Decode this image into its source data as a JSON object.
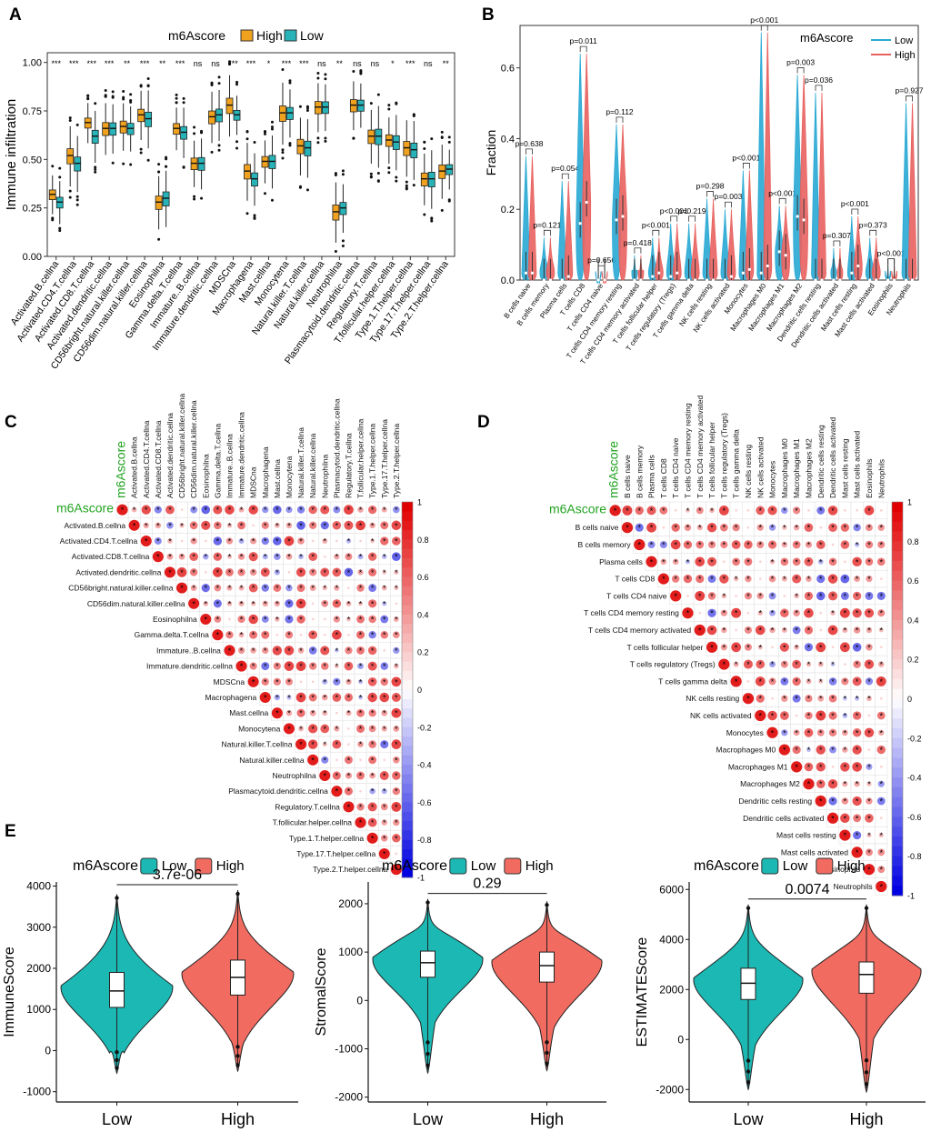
{
  "colors": {
    "panelA_high": "#F0A21E",
    "panelA_low": "#27B3B8",
    "panelB_low": "#29A9D4",
    "panelB_high": "#E8625F",
    "violin_low": "#1CB8B3",
    "violin_high": "#F26B61",
    "corr_pos": "#E21B1B",
    "corr_neg": "#1F1FE0",
    "m6a_label": "#22A322"
  },
  "chart_data": [
    {
      "panel": "A",
      "type": "box",
      "legend_title": "m6Ascore",
      "legend": [
        "High",
        "Low"
      ],
      "ylabel": "Immune infiltration",
      "ylim": [
        0,
        1.05
      ],
      "yticks": [
        "0.00",
        "0.25",
        "0.50",
        "0.75",
        "1.00"
      ],
      "categories": [
        "Activated.B.cellna",
        "Activated.CD4.T.cellna",
        "Activated.CD8.T.cellna",
        "Activated.dendritic.cellna",
        "CD56bright.natural.killer.cellna",
        "CD56dim.natural.killer.cellna",
        "Eosinophilna",
        "Gamma.delta.T.cellna",
        "Immature..B.cellna",
        "Immature.dendritic.cellna",
        "MDSCna",
        "Macrophagena",
        "Mast.cellna",
        "Monocytena",
        "Natural.killer.T.cellna",
        "Natural.killer.cellna",
        "Neutrophilna",
        "Plasmacytoid.dendritic.cellna",
        "Regulatory.T.cellna",
        "T.follicular.helper.cellna",
        "Type.1.T.helper.cellna",
        "Type.17.T.helper.cellna",
        "Type.2.T.helper.cellna"
      ],
      "significance": [
        "***",
        "***",
        "***",
        "***",
        "**",
        "***",
        "**",
        "***",
        "ns",
        "ns",
        "***",
        "***",
        "*",
        "***",
        "***",
        "ns",
        "**",
        "ns",
        "ns",
        "*",
        "***",
        "ns",
        "**"
      ],
      "series": [
        {
          "name": "High",
          "median": [
            0.32,
            0.52,
            0.69,
            0.66,
            0.67,
            0.73,
            0.28,
            0.66,
            0.48,
            0.72,
            0.78,
            0.44,
            0.49,
            0.74,
            0.57,
            0.77,
            0.23,
            0.78,
            0.62,
            0.6,
            0.56,
            0.4,
            0.44
          ]
        },
        {
          "name": "Low",
          "median": [
            0.28,
            0.48,
            0.62,
            0.66,
            0.66,
            0.71,
            0.3,
            0.64,
            0.48,
            0.73,
            0.73,
            0.4,
            0.49,
            0.74,
            0.56,
            0.77,
            0.25,
            0.78,
            0.62,
            0.59,
            0.55,
            0.4,
            0.45
          ]
        }
      ]
    },
    {
      "panel": "B",
      "type": "violin",
      "legend_title": "m6Ascore",
      "legend": [
        "Low",
        "High"
      ],
      "ylabel": "Fraction",
      "ylim": [
        0,
        0.72
      ],
      "yticks": [
        "0.0",
        "0.2",
        "0.4",
        "0.6"
      ],
      "categories": [
        "B cells naive",
        "B cells memory",
        "Plasma cells",
        "T cells CD8",
        "T cells CD4 naive",
        "T cells CD4 memory resting",
        "T cells CD4 memory activated",
        "T cells follicular helper",
        "T cells regulatory (Tregs)",
        "T cells gamma delta",
        "NK cells resting",
        "NK cells activated",
        "Monocytes",
        "Macrophages M0",
        "Macrophages M1",
        "Macrophages M2",
        "Dendritic cells resting",
        "Dendritic cells activated",
        "Mast cells resting",
        "Mast cells activated",
        "Eosinophils",
        "Neutrophils"
      ],
      "pvalues": [
        "p=0.638",
        "p=0.121",
        "p=0.054",
        "p=0.011",
        "p=0.656",
        "p=0.112",
        "p=0.418",
        "p<0.001",
        "p<0.001",
        "p=0.219",
        "p=0.298",
        "p=0.003",
        "p<0.001",
        "p<0.001",
        "p<0.001",
        "p=0.003",
        "p=0.036",
        "p=0.307",
        "p<0.001",
        "p=0.373",
        "p<0.001",
        "p=0.927"
      ],
      "max": [
        0.35,
        0.12,
        0.28,
        0.64,
        0.02,
        0.44,
        0.07,
        0.12,
        0.16,
        0.16,
        0.23,
        0.2,
        0.31,
        0.7,
        0.21,
        0.58,
        0.53,
        0.09,
        0.18,
        0.12,
        0.04,
        0.5
      ],
      "series": [
        {
          "name": "Low",
          "median": [
            0.02,
            0.0,
            0.0,
            0.16,
            0.0,
            0.17,
            0.0,
            0.01,
            0.01,
            0.0,
            0.0,
            0.0,
            0.02,
            0.02,
            0.08,
            0.18,
            0.0,
            0.0,
            0.02,
            0.0,
            0.0,
            0.0
          ]
        },
        {
          "name": "High",
          "median": [
            0.02,
            0.0,
            0.01,
            0.22,
            0.0,
            0.18,
            0.0,
            0.02,
            0.02,
            0.0,
            0.0,
            0.01,
            0.03,
            0.04,
            0.07,
            0.17,
            0.0,
            0.0,
            0.04,
            0.0,
            0.0,
            0.0
          ]
        }
      ]
    },
    {
      "panel": "C",
      "type": "heatmap",
      "corner_label": "m6Ascore",
      "labels": [
        "Activated.B.cellna",
        "Activated.CD4.T.cellna",
        "Activated.CD8.T.cellna",
        "Activated.dendritic.cellna",
        "CD56bright.natural.killer.cellna",
        "CD56dim.natural.killer.cellna",
        "Eosinophilna",
        "Gamma.delta.T.cellna",
        "Immature..B.cellna",
        "Immature.dendritic.cellna",
        "MDSCna",
        "Macrophagena",
        "Mast.cellna",
        "Monocytena",
        "Natural.killer.T.cellna",
        "Natural.killer.cellna",
        "Neutrophilna",
        "Plasmacytoid.dendritic.cellna",
        "Regulatory.T.cellna",
        "T.follicular.helper.cellna",
        "Type.1.T.helper.cellna",
        "Type.17.T.helper.cellna",
        "Type.2.T.helper.cellna"
      ],
      "scale_ticks": [
        "1",
        "0.8",
        "0.6",
        "0.4",
        "0.2",
        "0",
        "-0.2",
        "-0.4",
        "-0.6",
        "-0.8",
        "-1"
      ],
      "scale_range": [
        -1,
        1
      ]
    },
    {
      "panel": "D",
      "type": "heatmap",
      "corner_label": "m6Ascore",
      "labels": [
        "B cells naive",
        "B cells memory",
        "Plasma cells",
        "T cells CD8",
        "T cells CD4 naive",
        "T cells CD4 memory resting",
        "T cells CD4 memory activated",
        "T cells follicular helper",
        "T cells regulatory (Tregs)",
        "T cells gamma delta",
        "NK cells resting",
        "NK cells activated",
        "Monocytes",
        "Macrophages M0",
        "Macrophages M1",
        "Macrophages M2",
        "Dendritic cells resting",
        "Dendritic cells activated",
        "Mast cells resting",
        "Mast cells activated",
        "Eosinophils",
        "Neutrophils"
      ],
      "scale_ticks": [
        "1",
        "0.8",
        "0.6",
        "0.4",
        "0.2",
        "0",
        "-0.2",
        "-0.4",
        "-0.6",
        "-0.8",
        "-1"
      ],
      "scale_range": [
        -1,
        1
      ]
    },
    {
      "panel": "E1",
      "type": "violin",
      "legend_title": "m6Ascore",
      "legend": [
        "Low",
        "High"
      ],
      "categories": [
        "Low",
        "High"
      ],
      "ylabel": "ImmuneScore",
      "ylim": [
        -1250,
        4100
      ],
      "yticks": [
        -1000,
        0,
        1000,
        2000,
        3000,
        4000
      ],
      "pvalue": "3.7e-06",
      "series": [
        {
          "name": "Low",
          "median": 1450,
          "q1": 1050,
          "q3": 1900,
          "min": -550,
          "max": 3800
        },
        {
          "name": "High",
          "median": 1780,
          "q1": 1350,
          "q3": 2200,
          "min": -500,
          "max": 3900
        }
      ]
    },
    {
      "panel": "E2",
      "type": "violin",
      "legend_title": "m6Ascore",
      "legend": [
        "Low",
        "High"
      ],
      "categories": [
        "Low",
        "High"
      ],
      "ylabel": "StromalScore",
      "ylim": [
        -2100,
        2450
      ],
      "yticks": [
        -2000,
        -1000,
        0,
        1000,
        2000
      ],
      "pvalue": "0.29",
      "series": [
        {
          "name": "Low",
          "median": 780,
          "q1": 480,
          "q3": 1020,
          "min": -1500,
          "max": 2100
        },
        {
          "name": "High",
          "median": 720,
          "q1": 380,
          "q3": 1000,
          "min": -1450,
          "max": 2050
        }
      ]
    },
    {
      "panel": "E3",
      "type": "violin",
      "legend_title": "m6Ascore",
      "legend": [
        "Low",
        "High"
      ],
      "categories": [
        "Low",
        "High"
      ],
      "ylabel": "ESTIMATEScore",
      "ylim": [
        -2500,
        6300
      ],
      "yticks": [
        -2000,
        0,
        2000,
        4000,
        6000
      ],
      "pvalue": "0.0074",
      "series": [
        {
          "name": "Low",
          "median": 2250,
          "q1": 1600,
          "q3": 2850,
          "min": -2000,
          "max": 5400
        },
        {
          "name": "High",
          "median": 2600,
          "q1": 1850,
          "q3": 3100,
          "min": -2100,
          "max": 5400
        }
      ]
    }
  ],
  "panel_labels": [
    "A",
    "B",
    "C",
    "D",
    "E"
  ]
}
